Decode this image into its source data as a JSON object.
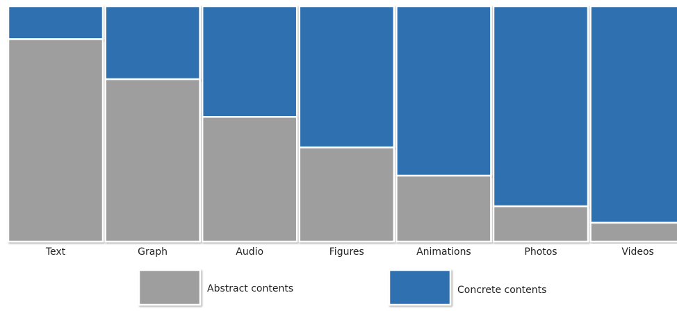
{
  "chart_data": {
    "type": "bar",
    "stacked": true,
    "categories": [
      "Text",
      "Graph",
      "Audio",
      "Figures",
      "Animations",
      "Photos",
      "Videos"
    ],
    "series": [
      {
        "name": "Abstract contents",
        "color": "#9e9e9e",
        "values": [
          86,
          69,
          53,
          40,
          28,
          15,
          8
        ]
      },
      {
        "name": "Concrete contents",
        "color": "#2e6fb0",
        "values": [
          14,
          31,
          47,
          60,
          72,
          85,
          92
        ]
      }
    ],
    "ylim": [
      0,
      100
    ],
    "grid": false,
    "legend_position": "bottom"
  }
}
